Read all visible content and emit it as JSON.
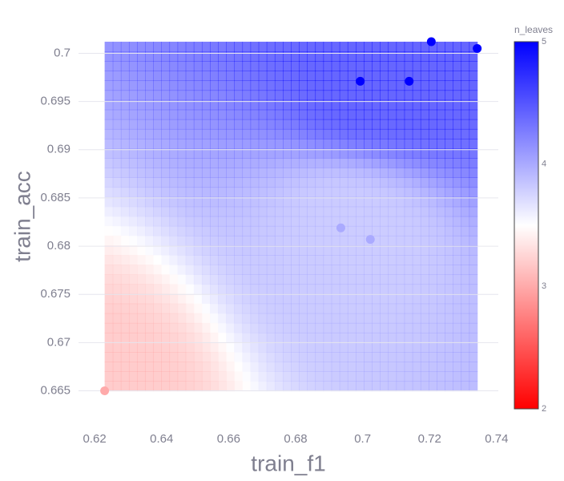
{
  "chart_data": {
    "type": "scatter",
    "x_label": "train_f1",
    "y_label": "train_acc",
    "colorbar_title": "n_leaves",
    "x": [
      0.623,
      0.6935,
      0.7023,
      0.6993,
      0.7139,
      0.7205,
      0.7342
    ],
    "y": [
      0.665,
      0.6819,
      0.6807,
      0.6971,
      0.6971,
      0.7012,
      0.7005
    ],
    "color_values": [
      3,
      4,
      4,
      5,
      5,
      5,
      5
    ],
    "colorscale": [
      "#ff0000",
      "#ffffff",
      "#0000ff"
    ],
    "clim": [
      2,
      5
    ],
    "cticks": [
      2,
      3,
      4,
      5
    ],
    "xlim": [
      0.6152,
      0.7405
    ],
    "ylim": [
      0.6623,
      0.7022
    ],
    "xticks": [
      0.62,
      0.64,
      0.66,
      0.68,
      0.7,
      0.72,
      0.74
    ],
    "yticks": [
      0.665,
      0.67,
      0.675,
      0.68,
      0.685,
      0.69,
      0.695,
      0.7
    ],
    "grid": true
  }
}
